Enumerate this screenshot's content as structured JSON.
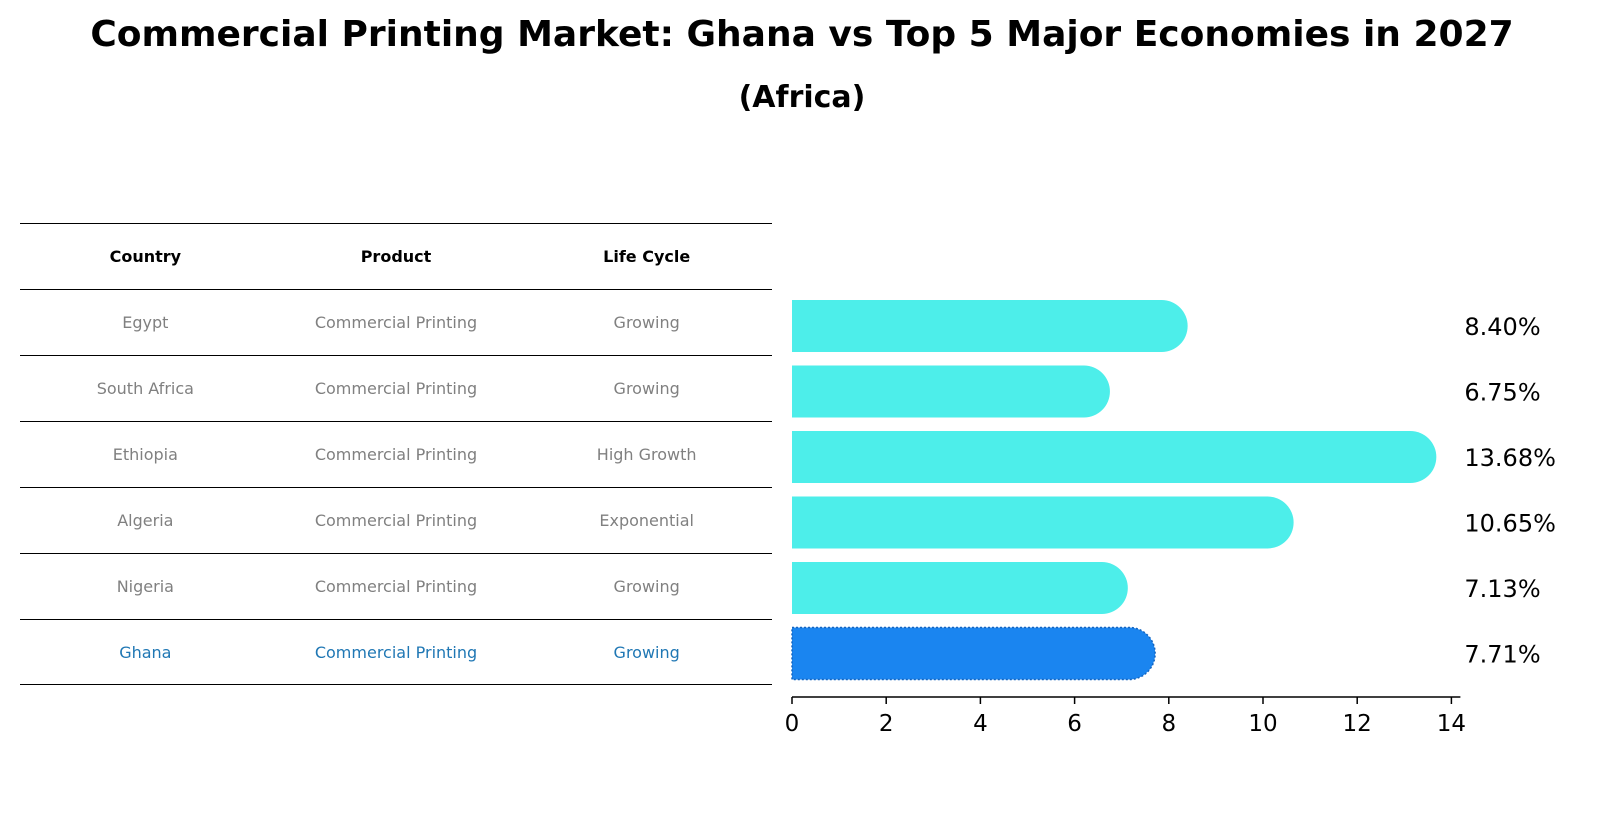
{
  "title": "Commercial Printing Market: Ghana vs Top 5 Major Economies in 2027",
  "subtitle": "(Africa)",
  "table": {
    "headers": [
      "Country",
      "Product",
      "Life Cycle"
    ],
    "rows": [
      [
        "Egypt",
        "Commercial Printing",
        "Growing"
      ],
      [
        "South Africa",
        "Commercial Printing",
        "Growing"
      ],
      [
        "Ethiopia",
        "Commercial Printing",
        "High Growth"
      ],
      [
        "Algeria",
        "Commercial Printing",
        "Exponential"
      ],
      [
        "Nigeria",
        "Commercial Printing",
        "Growing"
      ],
      [
        "Ghana",
        "Commercial Printing",
        "Growing"
      ]
    ],
    "highlight_row": "Ghana"
  },
  "chart_data": {
    "type": "bar",
    "orientation": "horizontal",
    "categories": [
      "Egypt",
      "South Africa",
      "Ethiopia",
      "Algeria",
      "Nigeria",
      "Ghana"
    ],
    "values": [
      8.4,
      6.75,
      13.68,
      10.65,
      7.13,
      7.71
    ],
    "labels": [
      "8.40%",
      "6.75%",
      "13.68%",
      "10.65%",
      "7.13%",
      "7.71%"
    ],
    "xlim": [
      0,
      14
    ],
    "xticks": [
      0,
      2,
      4,
      6,
      8,
      10,
      12,
      14
    ],
    "colors": {
      "default": "#4deeea",
      "highlight": "#1a85f0"
    },
    "grid": false
  }
}
